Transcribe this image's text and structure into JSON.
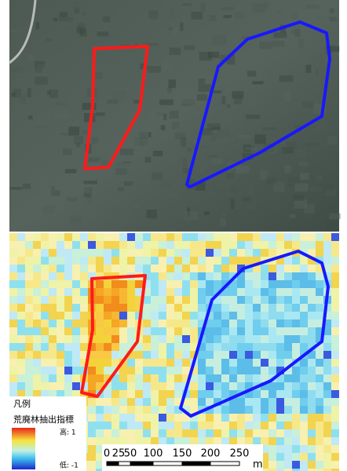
{
  "legend": {
    "title": "凡例",
    "index_name": "荒廃林抽出指標",
    "high": "高: 1",
    "low": "低: -1"
  },
  "scale_bar": {
    "labels": [
      "0",
      "25",
      "50",
      "100",
      "150",
      "200",
      "250"
    ],
    "unit": "m"
  }
}
